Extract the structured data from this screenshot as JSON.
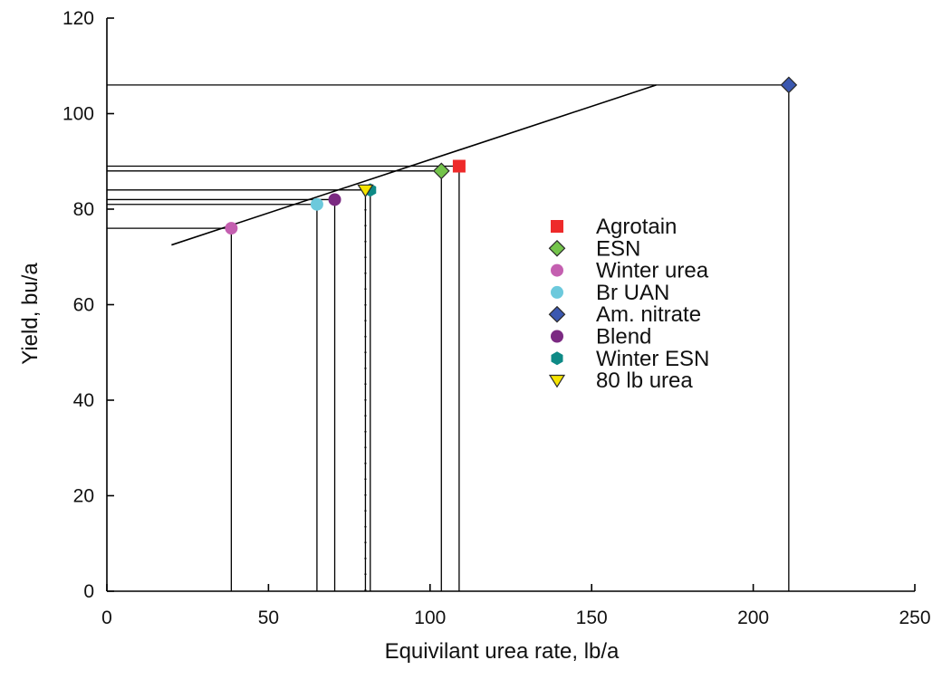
{
  "chart_data": {
    "type": "scatter",
    "xlabel": "Equivilant urea rate, lb/a",
    "ylabel": "Yield, bu/a",
    "xlim": [
      0,
      250
    ],
    "ylim": [
      0,
      120
    ],
    "xticks": [
      0,
      50,
      100,
      150,
      200,
      250
    ],
    "yticks": [
      0,
      20,
      40,
      60,
      80,
      100,
      120
    ],
    "grid": false,
    "legend_position": "right-center",
    "series": [
      {
        "name": "Agrotain",
        "x": 109,
        "y": 89,
        "marker": "square",
        "color": "#ee2a2a"
      },
      {
        "name": "ESN",
        "x": 103.5,
        "y": 88,
        "marker": "diamond",
        "color": "#74c44b"
      },
      {
        "name": "Winter urea",
        "x": 38.5,
        "y": 76,
        "marker": "circle",
        "color": "#c45fb0"
      },
      {
        "name": "Br UAN",
        "x": 65,
        "y": 81,
        "marker": "circle",
        "color": "#6cc9dc"
      },
      {
        "name": "Am. nitrate",
        "x": 211,
        "y": 106,
        "marker": "diamond",
        "color": "#3b58b0"
      },
      {
        "name": "Blend",
        "x": 70.5,
        "y": 82,
        "marker": "circle",
        "color": "#7b2a82"
      },
      {
        "name": "Winter ESN",
        "x": 81.5,
        "y": 84,
        "marker": "hexagon",
        "color": "#0e8a86"
      },
      {
        "name": "80 lb urea",
        "x": 80,
        "y": 84,
        "marker": "triangle-down",
        "color": "#f5e300"
      }
    ],
    "response_line": {
      "x": [
        20,
        170
      ],
      "y": [
        72.5,
        106
      ]
    },
    "dotted_reference_x": 80
  }
}
